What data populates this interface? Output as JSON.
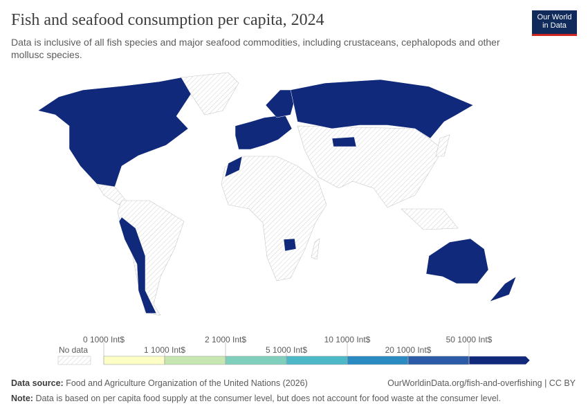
{
  "header": {
    "title": "Fish and seafood consumption per capita, 2024",
    "subtitle": "Data is inclusive of all fish species and major seafood commodities, including crustaceans, cephalopods and other mollusc species.",
    "logo": [
      "Our World",
      "in Data"
    ]
  },
  "legend": {
    "no_data": "No data",
    "bins": [
      "0 1000 Int$",
      "1 1000 Int$",
      "2 1000 Int$",
      "5 1000 Int$",
      "10 1000 Int$",
      "20 1000 Int$",
      "50 1000 Int$"
    ],
    "colors": [
      "#fdfdc6",
      "#c6e7b2",
      "#80cfbd",
      "#4cb8c8",
      "#2a8ac2",
      "#2b5ba6",
      "#10297a"
    ]
  },
  "footer": {
    "source_label": "Data source:",
    "source": "Food and Agriculture Organization of the United Nations (2026)",
    "link": "OurWorldinData.org/fish-and-overfishing | CC BY",
    "note_label": "Note:",
    "note": "Data is based on per capita food supply at the consumer level, but does not account for food waste at the consumer level."
  }
}
